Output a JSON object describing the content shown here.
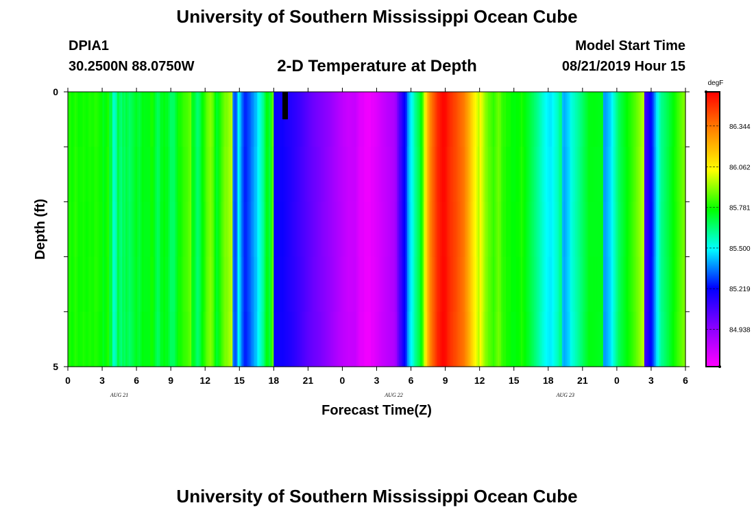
{
  "header": {
    "title": "University of Southern Mississippi Ocean Cube",
    "station_id": "DPIA1",
    "station_coords": "30.2500N 88.0750W",
    "chart_title": "2-D Temperature at Depth",
    "model_start_label": "Model Start Time",
    "model_start_value": "08/21/2019 Hour 15"
  },
  "footer": {
    "title": "University of Southern Mississippi Ocean Cube"
  },
  "chart_data": {
    "type": "heatmap",
    "title": "2-D Temperature at Depth",
    "xlabel": "Forecast Time(Z)",
    "ylabel": "Depth (ft)",
    "x_tick_labels": [
      "0",
      "3",
      "6",
      "9",
      "12",
      "15",
      "18",
      "21",
      "0",
      "3",
      "6",
      "9",
      "12",
      "15",
      "18",
      "21",
      "0",
      "3",
      "6"
    ],
    "date_labels": [
      {
        "label": "AUG 21",
        "tick_index": 1.5
      },
      {
        "label": "AUG 22",
        "tick_index": 9.5
      },
      {
        "label": "AUG 23",
        "tick_index": 14.5
      }
    ],
    "y_tick_labels": [
      "0",
      "5"
    ],
    "ylim": [
      0,
      5
    ],
    "xlim_hours": [
      0,
      54
    ],
    "colorbar": {
      "unit": "degF",
      "ticks": [
        84.938,
        85.219,
        85.5,
        85.781,
        86.062,
        86.344
      ],
      "tick_labels": [
        "84.938",
        "85.219",
        "85.500",
        "85.781",
        "86.062",
        "86.344"
      ],
      "range": [
        84.68,
        86.58
      ],
      "colors": [
        "#ff00ff",
        "#8800ff",
        "#0000ff",
        "#00ffff",
        "#00ff00",
        "#ffff00",
        "#ff8800",
        "#ff0000"
      ]
    },
    "depth_levels": 5,
    "columns_per_hour": 2,
    "values": [
      [
        85.8,
        85.8,
        85.78,
        85.79,
        85.81,
        85.8,
        85.78,
        85.78,
        85.78,
        85.79,
        85.78,
        85.77,
        85.78,
        85.79,
        85.78,
        85.78,
        85.8,
        85.8,
        85.79,
        85.78,
        85.78,
        85.74,
        85.76,
        85.78,
        85.8
      ],
      [
        85.7,
        85.7,
        85.55,
        85.55,
        85.6,
        85.7,
        85.65,
        85.63,
        85.68,
        85.66,
        85.7,
        85.68,
        85.66,
        85.68,
        85.7,
        85.72,
        85.74,
        85.72,
        85.7,
        85.73,
        85.75,
        85.74,
        85.74,
        85.74,
        85.74
      ],
      [
        85.78,
        85.78,
        85.74,
        85.7,
        85.67,
        85.68,
        85.74,
        85.74,
        85.76,
        85.74,
        85.74,
        85.7,
        85.66,
        85.66,
        85.66,
        85.7,
        85.74,
        85.78,
        85.78,
        85.8,
        85.82,
        85.83,
        85.84,
        85.86,
        85.88
      ],
      [
        85.74,
        85.74,
        85.7,
        85.65,
        85.66,
        85.7,
        85.76,
        85.78,
        85.82,
        85.86,
        85.88,
        85.9,
        85.88,
        85.84,
        85.76,
        85.72,
        85.75,
        85.8,
        85.84,
        85.87,
        85.9,
        85.9,
        85.92,
        85.94,
        85.96
      ],
      [
        85.35,
        85.3,
        85.33,
        85.5,
        85.44,
        85.36,
        85.3,
        85.26,
        85.27,
        85.3,
        85.32,
        85.36,
        85.38,
        85.42,
        85.43,
        85.49,
        85.52,
        85.56,
        85.6,
        85.66,
        85.74,
        85.74,
        85.7,
        85.8,
        85.86
      ],
      [
        85.22,
        85.2,
        85.2,
        85.2,
        85.2,
        85.2,
        85.19,
        85.18,
        85.17,
        85.16,
        85.15,
        85.14,
        85.13,
        85.12,
        85.11,
        85.1,
        85.09,
        85.08,
        85.07,
        85.06,
        85.05,
        85.04,
        85.03,
        85.02,
        85.01
      ],
      [
        85.0,
        84.99,
        84.98,
        84.97,
        84.96,
        84.95,
        84.94,
        84.93,
        84.92,
        84.91,
        84.9,
        84.89,
        84.88,
        84.87,
        84.86,
        84.85,
        84.84,
        84.83,
        84.82,
        84.81,
        84.8,
        84.8,
        84.8,
        84.8,
        84.8
      ],
      [
        84.78,
        84.76,
        84.74,
        84.74,
        84.74,
        84.72,
        84.72,
        84.72,
        84.72,
        84.74,
        84.74,
        84.75,
        84.76,
        84.77,
        84.78,
        84.79,
        84.8,
        84.81,
        84.82,
        84.83,
        84.84,
        84.85,
        84.86,
        84.88,
        84.92
      ],
      [
        85.02,
        85.08,
        85.12,
        85.18,
        85.22,
        85.28,
        85.38,
        85.44,
        85.48,
        85.52,
        85.58,
        85.62,
        85.66,
        85.7,
        85.76,
        85.84,
        85.98,
        86.1,
        86.2,
        86.28,
        86.34,
        86.38,
        86.42,
        86.46,
        86.5
      ],
      [
        86.52,
        86.54,
        86.56,
        86.56,
        86.55,
        86.52,
        86.5,
        86.48,
        86.47,
        86.45,
        86.44,
        86.42,
        86.4,
        86.38,
        86.36,
        86.34,
        86.3,
        86.26,
        86.22,
        86.17,
        86.12,
        86.08,
        86.04,
        86.0,
        85.96
      ],
      [
        86.05,
        86.0,
        85.96,
        85.92,
        85.9,
        85.87,
        85.86,
        85.84,
        85.82,
        85.84,
        85.86,
        85.88,
        85.86,
        85.82,
        85.8,
        85.8,
        85.78,
        85.78,
        85.78,
        85.76,
        85.76,
        85.76,
        85.77,
        85.77,
        85.78
      ],
      [
        85.8,
        85.78,
        85.76,
        85.74,
        85.72,
        85.7,
        85.68,
        85.66,
        85.64,
        85.62,
        85.6,
        85.58,
        85.56,
        85.54,
        85.52,
        85.5,
        85.49,
        85.48,
        85.48,
        85.5,
        85.52,
        85.54,
        85.56,
        85.6,
        85.62
      ],
      [
        85.42,
        85.4,
        85.42,
        85.44,
        85.46,
        85.52,
        85.54,
        85.56,
        85.58,
        85.6,
        85.62,
        85.64,
        85.66,
        85.68,
        85.7,
        85.72,
        85.74,
        85.74,
        85.74,
        85.74,
        85.74,
        85.74,
        85.74,
        85.74,
        85.74
      ],
      [
        85.4,
        85.4,
        85.42,
        85.44,
        85.46,
        85.5,
        85.54,
        85.58,
        85.62,
        85.66,
        85.68,
        85.7,
        85.72,
        85.74,
        85.76,
        85.78,
        85.8,
        85.82,
        85.84,
        85.86,
        85.88,
        85.9,
        85.92,
        85.94,
        85.96
      ],
      [
        85.1,
        85.12,
        85.16,
        85.2,
        85.24,
        85.3,
        85.38,
        85.46,
        85.52,
        85.58,
        85.62,
        85.64,
        85.66,
        85.68,
        85.7,
        85.72,
        85.74,
        85.76,
        85.78,
        85.8,
        85.82,
        85.84,
        85.86,
        85.88,
        85.9
      ]
    ]
  }
}
